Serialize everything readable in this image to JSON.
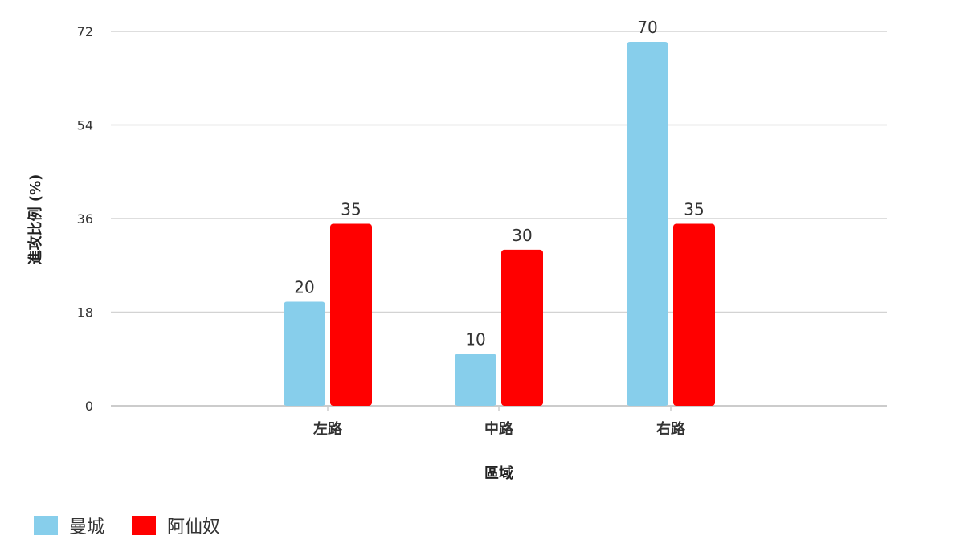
{
  "chart_data": {
    "type": "bar",
    "title": "",
    "xlabel": "區域",
    "ylabel": "進攻比例 (%)",
    "categories": [
      "左路",
      "中路",
      "右路"
    ],
    "series": [
      {
        "name": "曼城",
        "color": "#87CEEB",
        "values": [
          20,
          10,
          70
        ]
      },
      {
        "name": "阿仙奴",
        "color": "#FF0000",
        "values": [
          35,
          30,
          35
        ]
      }
    ],
    "ylim": [
      0,
      72
    ],
    "yticks": [
      0,
      18,
      36,
      54,
      72
    ],
    "grid": true,
    "legend_position": "bottom-left",
    "data_labels": true
  }
}
